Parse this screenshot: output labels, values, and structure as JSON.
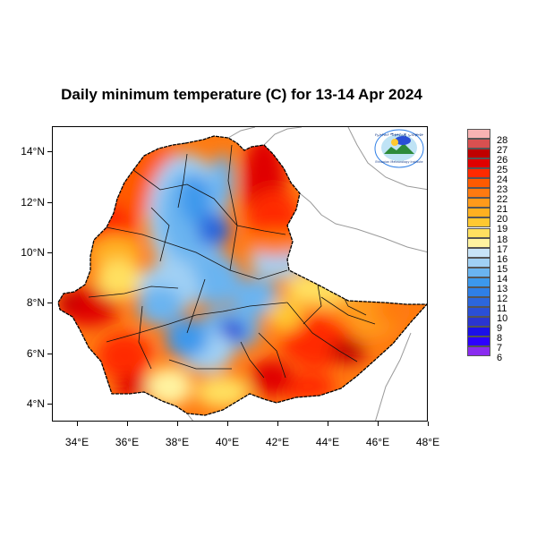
{
  "title": "Daily minimum temperature (C) for 13-14 Apr 2024",
  "map": {
    "lon_range": [
      33,
      48
    ],
    "lat_range": [
      3.3,
      15
    ],
    "x_ticks": [
      "34°E",
      "36°E",
      "38°E",
      "40°E",
      "42°E",
      "44°E",
      "46°E",
      "48°E"
    ],
    "x_tick_values": [
      34,
      36,
      38,
      40,
      42,
      44,
      46,
      48
    ],
    "y_ticks": [
      "14°N",
      "12°N",
      "10°N",
      "8°N",
      "6°N",
      "4°N"
    ],
    "y_tick_values": [
      14,
      12,
      10,
      8,
      6,
      4
    ]
  },
  "colorbar": {
    "labels": [
      "28",
      "27",
      "26",
      "25",
      "24",
      "23",
      "22",
      "21",
      "20",
      "19",
      "18",
      "17",
      "16",
      "15",
      "14",
      "13",
      "12",
      "11",
      "10",
      "9",
      "8",
      "7",
      "6"
    ],
    "colors": [
      "#f7b3b3",
      "#d95050",
      "#c00000",
      "#e00000",
      "#ff2a00",
      "#ff5a00",
      "#ff7a10",
      "#ff9a1a",
      "#ffb020",
      "#ffc830",
      "#ffe060",
      "#fff3a0",
      "#c8e4f8",
      "#a0d0f4",
      "#6ab4f0",
      "#3c98ec",
      "#2f7fe6",
      "#2c66dc",
      "#2a4fd6",
      "#2a35d0",
      "#1b10e8",
      "#2c00ff",
      "#8a2cf0"
    ]
  },
  "logo": {
    "icon": "meteorology-agency-logo-icon",
    "text_top": "የኢትዮጵያ ሚቲዎሮሎጂ ኢንስቲትዩት",
    "text_bottom": "Ethiopian Meteorology Institute"
  }
}
